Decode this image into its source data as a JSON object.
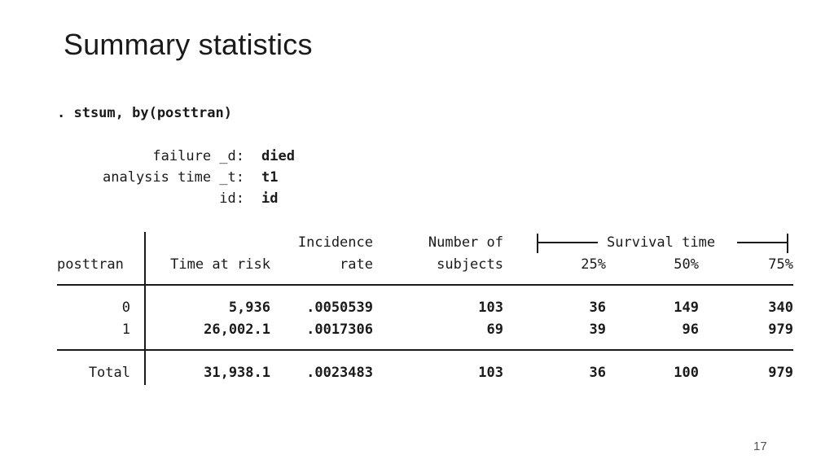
{
  "slide": {
    "title": "Summary statistics",
    "page_number": "17"
  },
  "stata": {
    "command": ". stsum, by(posttran)",
    "settings": [
      {
        "label": "failure _d:",
        "value": "died"
      },
      {
        "label": "analysis time _t:",
        "value": "t1"
      },
      {
        "label": "id:",
        "value": "id"
      }
    ],
    "table": {
      "headers": {
        "group_var": "posttran",
        "time_at_risk": "Time at risk",
        "incidence_line1": "Incidence",
        "incidence_line2": "rate",
        "subjects_line1": "Number of",
        "subjects_line2": "subjects",
        "survival_group": "Survival time",
        "p25": "25%",
        "p50": "50%",
        "p75": "75%"
      },
      "rows": [
        {
          "group": "0",
          "time_at_risk": "5,936",
          "incidence_rate": ".0050539",
          "subjects": "103",
          "p25": "36",
          "p50": "149",
          "p75": "340"
        },
        {
          "group": "1",
          "time_at_risk": "26,002.1",
          "incidence_rate": ".0017306",
          "subjects": "69",
          "p25": "39",
          "p50": "96",
          "p75": "979"
        }
      ],
      "total": {
        "group": "Total",
        "time_at_risk": "31,938.1",
        "incidence_rate": ".0023483",
        "subjects": "103",
        "p25": "36",
        "p50": "100",
        "p75": "979"
      }
    }
  }
}
